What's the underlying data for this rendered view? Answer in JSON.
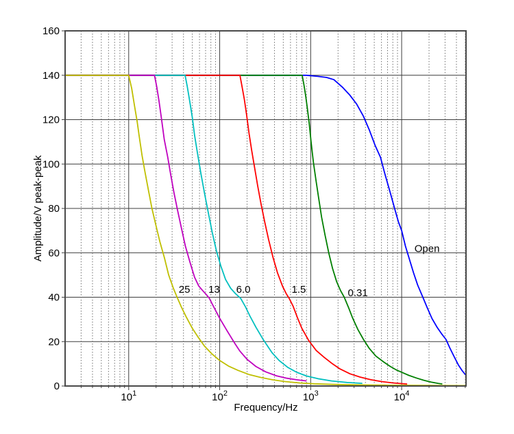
{
  "chart_data": {
    "type": "line",
    "title": "",
    "xlabel": "Frequency/Hz",
    "ylabel": "Amplitude/V peak-peak",
    "x_scale": "log",
    "xlim": [
      2,
      51000
    ],
    "ylim": [
      0,
      160
    ],
    "grid": true,
    "legend_position": "none",
    "y_ticks": [
      0,
      20,
      40,
      60,
      80,
      100,
      120,
      140,
      160
    ],
    "x_major_ticks": [
      10,
      100,
      1000,
      10000
    ],
    "x_tick_labels": [
      {
        "base": "10",
        "exp": "1"
      },
      {
        "base": "10",
        "exp": "2"
      },
      {
        "base": "10",
        "exp": "3"
      },
      {
        "base": "10",
        "exp": "4"
      }
    ],
    "colors": {
      "frame": "#4a4a4a",
      "grid_major": "#3c3c3c",
      "grid_minor": "#6e6e6e",
      "tick": "#3c3c3c",
      "text": "#000000",
      "background": "#ffffff"
    },
    "series": [
      {
        "label": "Open",
        "color": "#0000ff",
        "points": [
          [
            2,
            140
          ],
          [
            500,
            140
          ],
          [
            900,
            140
          ],
          [
            1200,
            139.5
          ],
          [
            1500,
            139
          ],
          [
            1800,
            138
          ],
          [
            2250,
            134.5
          ],
          [
            2700,
            131
          ],
          [
            3200,
            127
          ],
          [
            3800,
            121.5
          ],
          [
            4400,
            115.5
          ],
          [
            5100,
            108.5
          ],
          [
            5850,
            103
          ],
          [
            6500,
            96
          ],
          [
            7500,
            87
          ],
          [
            8500,
            79
          ],
          [
            9200,
            74
          ],
          [
            10000,
            70
          ],
          [
            11000,
            63
          ],
          [
            12300,
            56.5
          ],
          [
            13500,
            51
          ],
          [
            15000,
            45.5
          ],
          [
            17100,
            40
          ],
          [
            19000,
            35.5
          ],
          [
            21500,
            30.5
          ],
          [
            24500,
            26.5
          ],
          [
            27500,
            23.5
          ],
          [
            30700,
            21
          ],
          [
            34000,
            17
          ],
          [
            38000,
            13
          ],
          [
            42000,
            9.5
          ],
          [
            46000,
            7
          ],
          [
            50000,
            5.2
          ],
          [
            51000,
            4.8
          ]
        ]
      },
      {
        "label": "0.31",
        "color": "#007f00",
        "points": [
          [
            2,
            140
          ],
          [
            500,
            140
          ],
          [
            806,
            140
          ],
          [
            840,
            136
          ],
          [
            880,
            131
          ],
          [
            920,
            125
          ],
          [
            965,
            118
          ],
          [
            1010,
            110
          ],
          [
            1070,
            101
          ],
          [
            1140,
            93
          ],
          [
            1220,
            85
          ],
          [
            1320,
            76
          ],
          [
            1440,
            68
          ],
          [
            1580,
            60
          ],
          [
            1740,
            53
          ],
          [
            1930,
            47
          ],
          [
            2130,
            43
          ],
          [
            2340,
            40
          ],
          [
            2600,
            35.5
          ],
          [
            2900,
            30.5
          ],
          [
            3300,
            25.5
          ],
          [
            3800,
            21
          ],
          [
            4400,
            17
          ],
          [
            5200,
            13.5
          ],
          [
            6350,
            10.8
          ],
          [
            7500,
            8.8
          ],
          [
            8700,
            7.3
          ],
          [
            10000,
            6.2
          ],
          [
            12000,
            4.8
          ],
          [
            14500,
            3.6
          ],
          [
            17500,
            2.6
          ],
          [
            21000,
            1.8
          ],
          [
            25000,
            1.2
          ],
          [
            28000,
            0.9
          ]
        ]
      },
      {
        "label": "1.5",
        "color": "#ff0000",
        "points": [
          [
            2,
            140
          ],
          [
            100,
            140
          ],
          [
            167,
            140
          ],
          [
            176,
            135
          ],
          [
            187,
            129
          ],
          [
            198,
            122
          ],
          [
            210,
            114
          ],
          [
            225,
            106
          ],
          [
            243,
            98
          ],
          [
            262,
            90
          ],
          [
            285,
            82
          ],
          [
            312,
            74
          ],
          [
            345,
            66
          ],
          [
            385,
            58
          ],
          [
            432,
            51
          ],
          [
            490,
            45
          ],
          [
            540,
            41.5
          ],
          [
            580,
            39.5
          ],
          [
            640,
            36
          ],
          [
            720,
            30.5
          ],
          [
            800,
            26
          ],
          [
            950,
            20.5
          ],
          [
            1150,
            16
          ],
          [
            1400,
            13
          ],
          [
            1700,
            10.3
          ],
          [
            2100,
            7.7
          ],
          [
            2700,
            5.5
          ],
          [
            3500,
            4
          ],
          [
            4600,
            2.8
          ],
          [
            6000,
            2
          ],
          [
            8000,
            1.4
          ],
          [
            11500,
            0.9
          ]
        ]
      },
      {
        "label": "6.0",
        "color": "#00bfbf",
        "points": [
          [
            2,
            140
          ],
          [
            25,
            140
          ],
          [
            41.7,
            140
          ],
          [
            44,
            135
          ],
          [
            47,
            128
          ],
          [
            50,
            121
          ],
          [
            53,
            113
          ],
          [
            57,
            105
          ],
          [
            62,
            96
          ],
          [
            68,
            87
          ],
          [
            75,
            78
          ],
          [
            83,
            69
          ],
          [
            92,
            61
          ],
          [
            103,
            54
          ],
          [
            116,
            48
          ],
          [
            132,
            44
          ],
          [
            150,
            41.5
          ],
          [
            170,
            39.5
          ],
          [
            190,
            36
          ],
          [
            215,
            31.5
          ],
          [
            250,
            26.5
          ],
          [
            300,
            21
          ],
          [
            376,
            15
          ],
          [
            450,
            11.5
          ],
          [
            560,
            8.4
          ],
          [
            700,
            6.2
          ],
          [
            900,
            4.5
          ],
          [
            1200,
            3.3
          ],
          [
            1700,
            2.3
          ],
          [
            2500,
            1.6
          ],
          [
            3700,
            1.2
          ]
        ]
      },
      {
        "label": "13",
        "color": "#bf00bf",
        "points": [
          [
            2,
            140
          ],
          [
            12,
            140
          ],
          [
            19.2,
            140
          ],
          [
            20.3,
            135
          ],
          [
            21.6,
            128
          ],
          [
            23,
            120
          ],
          [
            24.6,
            111
          ],
          [
            26.9,
            103
          ],
          [
            29,
            95
          ],
          [
            31.5,
            87
          ],
          [
            34.5,
            79
          ],
          [
            38,
            71
          ],
          [
            42,
            63
          ],
          [
            47,
            56
          ],
          [
            53,
            49
          ],
          [
            59,
            45
          ],
          [
            65,
            43
          ],
          [
            72,
            41
          ],
          [
            77,
            39.5
          ],
          [
            85,
            36
          ],
          [
            100,
            30.5
          ],
          [
            120,
            25
          ],
          [
            145,
            19.5
          ],
          [
            166,
            15.8
          ],
          [
            200,
            12
          ],
          [
            250,
            8.8
          ],
          [
            320,
            6.4
          ],
          [
            420,
            4.6
          ],
          [
            550,
            3.5
          ],
          [
            700,
            2.8
          ],
          [
            900,
            2.3
          ]
        ]
      },
      {
        "label": "25",
        "color": "#bfbf00",
        "points": [
          [
            2,
            140
          ],
          [
            6,
            140
          ],
          [
            10,
            140
          ],
          [
            10.8,
            134
          ],
          [
            11.6,
            126
          ],
          [
            12.4,
            119
          ],
          [
            13,
            113
          ],
          [
            14,
            104
          ],
          [
            15,
            97
          ],
          [
            16.5,
            88
          ],
          [
            18,
            80
          ],
          [
            20,
            72
          ],
          [
            22,
            65
          ],
          [
            24.6,
            58
          ],
          [
            27.5,
            50
          ],
          [
            31,
            44
          ],
          [
            34,
            40
          ],
          [
            38,
            35.5
          ],
          [
            43,
            31
          ],
          [
            50,
            26
          ],
          [
            58,
            22
          ],
          [
            68,
            18
          ],
          [
            82,
            14.5
          ],
          [
            100,
            11.5
          ],
          [
            125,
            9
          ],
          [
            160,
            7
          ],
          [
            210,
            5.2
          ],
          [
            280,
            3.9
          ],
          [
            380,
            2.8
          ],
          [
            520,
            2
          ],
          [
            750,
            1.4
          ],
          [
            1100,
            1
          ],
          [
            1800,
            0.7
          ],
          [
            3500,
            0.5
          ],
          [
            8000,
            0.35
          ],
          [
            20000,
            0.25
          ],
          [
            51000,
            0.2
          ]
        ]
      }
    ],
    "annotations": [
      {
        "text": "25",
        "f": 41,
        "a": 43.5
      },
      {
        "text": "13",
        "f": 87,
        "a": 43.5
      },
      {
        "text": "6.0",
        "f": 182,
        "a": 43.5
      },
      {
        "text": "1.5",
        "f": 740,
        "a": 43.5
      },
      {
        "text": "0.31",
        "f": 3300,
        "a": 42
      },
      {
        "text": "Open",
        "f": 19000,
        "a": 62
      }
    ]
  }
}
